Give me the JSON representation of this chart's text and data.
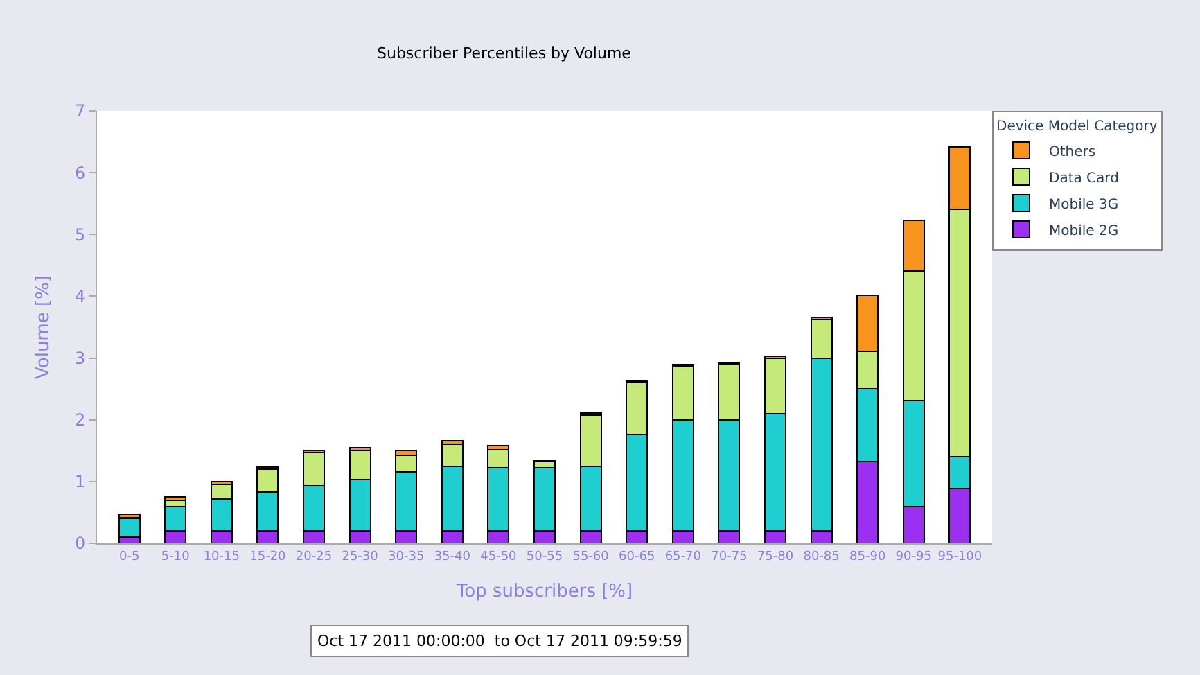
{
  "chart_data": {
    "type": "bar",
    "stacked": true,
    "title": "Subscriber Percentiles by Volume",
    "xlabel": "Top subscribers [%]",
    "ylabel": "Volume [%]",
    "legend_title": "Device Model Category",
    "legend": "top right",
    "categories": [
      "0-5",
      "5-10",
      "10-15",
      "15-20",
      "20-25",
      "25-30",
      "30-35",
      "35-40",
      "45-50",
      "50-55",
      "55-60",
      "60-65",
      "65-70",
      "70-75",
      "75-80",
      "80-85",
      "85-90",
      "90-95",
      "95-100"
    ],
    "ylim": [
      0,
      7
    ],
    "yticks": [
      0,
      1,
      2,
      3,
      4,
      5,
      6,
      7
    ],
    "series": [
      {
        "name": "Mobile 2G",
        "color": "#9b30f0",
        "values": [
          0.1,
          0.2,
          0.2,
          0.2,
          0.2,
          0.2,
          0.2,
          0.2,
          0.2,
          0.2,
          0.2,
          0.2,
          0.2,
          0.2,
          0.2,
          0.2,
          1.32,
          0.59,
          0.89
        ]
      },
      {
        "name": "Mobile 3G",
        "color": "#1fcfcf",
        "values": [
          0.3,
          0.4,
          0.52,
          0.63,
          0.73,
          0.83,
          0.95,
          1.05,
          1.02,
          1.02,
          1.04,
          1.56,
          1.8,
          1.8,
          1.9,
          2.8,
          1.18,
          1.72,
          0.51
        ]
      },
      {
        "name": "Data Card",
        "color": "#c6ea7a",
        "values": [
          0.02,
          0.1,
          0.23,
          0.37,
          0.54,
          0.47,
          0.28,
          0.35,
          0.3,
          0.1,
          0.83,
          0.84,
          0.87,
          0.9,
          0.9,
          0.62,
          0.61,
          2.1,
          4.01
        ]
      },
      {
        "name": "Others",
        "color": "#f7941d",
        "values": [
          0.05,
          0.05,
          0.05,
          0.03,
          0.03,
          0.05,
          0.07,
          0.06,
          0.06,
          0.02,
          0.04,
          0.03,
          0.02,
          0.02,
          0.03,
          0.04,
          0.91,
          0.82,
          1.01
        ]
      }
    ],
    "annotations": [
      "Oct 17 2011 00:00:00  to Oct 17 2011 09:59:59"
    ]
  }
}
